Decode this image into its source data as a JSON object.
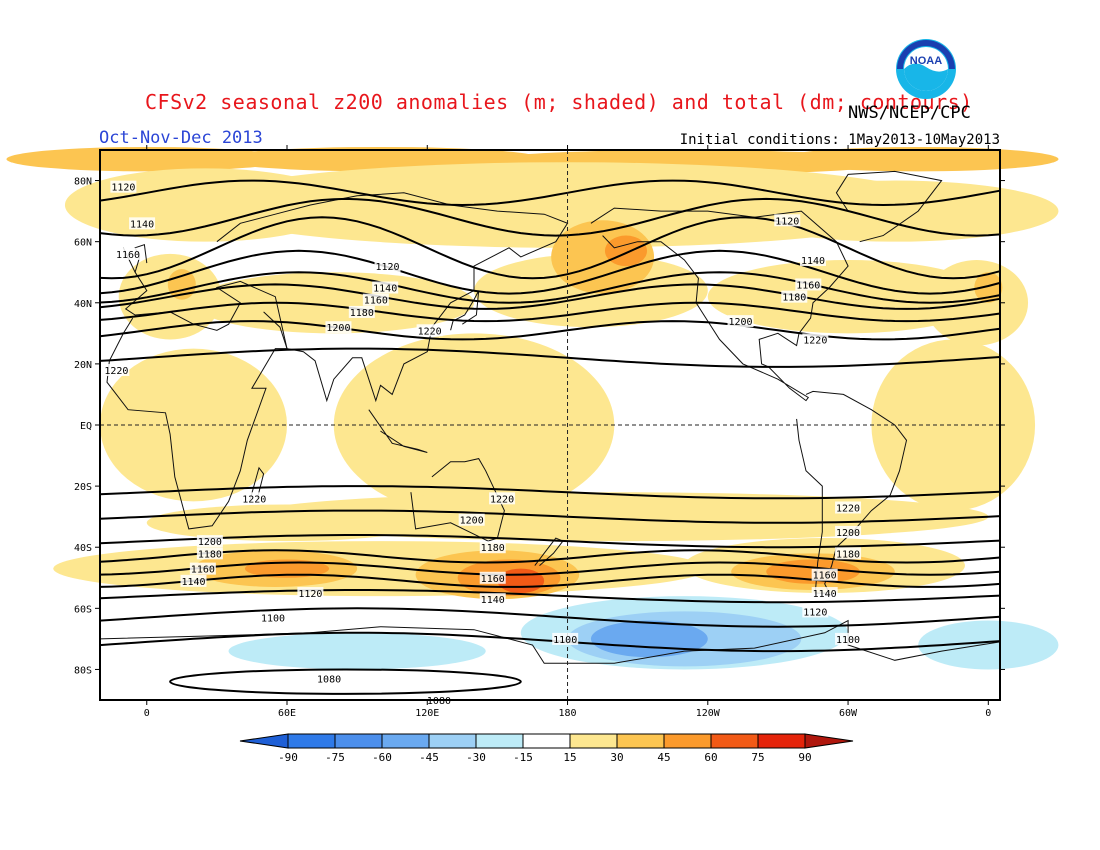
{
  "header": {
    "title": "CFSv2 seasonal z200 anomalies (m; shaded) and total (dm; contours)",
    "agency": "NWS/NCEP/CPC",
    "period": "Oct-Nov-Dec 2013",
    "initial_conditions": "Initial conditions: 1May2013-10May2013",
    "logo_text": "NOAA"
  },
  "axes": {
    "y_labels": [
      "80N",
      "60N",
      "40N",
      "20N",
      "EQ",
      "20S",
      "40S",
      "60S",
      "80S"
    ],
    "y_values": [
      80,
      60,
      40,
      20,
      0,
      -20,
      -40,
      -60,
      -80
    ],
    "x_labels": [
      "0",
      "60E",
      "120E",
      "180",
      "120W",
      "60W",
      "0"
    ],
    "x_values": [
      0,
      60,
      120,
      180,
      240,
      300,
      360
    ],
    "lon_range": [
      -20,
      365
    ],
    "lat_range": [
      -90,
      90
    ]
  },
  "colorbar": {
    "levels": [
      -90,
      -75,
      -60,
      -45,
      -30,
      -15,
      15,
      30,
      45,
      60,
      75,
      90
    ],
    "labels": [
      "-90",
      "-75",
      "-60",
      "-45",
      "-30",
      "-15",
      "15",
      "30",
      "45",
      "60",
      "75",
      "90"
    ],
    "colors": [
      "#1e5fd6",
      "#2f7ae8",
      "#4c8fec",
      "#6aa9f0",
      "#9dd0f5",
      "#bdebf7",
      "#ffffff",
      "#fde790",
      "#fcc551",
      "#fb9a2c",
      "#f25a16",
      "#e5240a",
      "#b0170d"
    ]
  },
  "contour_labels": [
    {
      "text": "1120",
      "lon": -10,
      "lat": 78
    },
    {
      "text": "1140",
      "lon": -2,
      "lat": 66
    },
    {
      "text": "1160",
      "lon": -8,
      "lat": 56
    },
    {
      "text": "1120",
      "lon": 103,
      "lat": 52
    },
    {
      "text": "1140",
      "lon": 102,
      "lat": 45
    },
    {
      "text": "1160",
      "lon": 98,
      "lat": 41
    },
    {
      "text": "1180",
      "lon": 92,
      "lat": 37
    },
    {
      "text": "1200",
      "lon": 82,
      "lat": 32
    },
    {
      "text": "1220",
      "lon": 121,
      "lat": 31
    },
    {
      "text": "1220",
      "lon": -13,
      "lat": 18
    },
    {
      "text": "1120",
      "lon": 274,
      "lat": 67
    },
    {
      "text": "1140",
      "lon": 285,
      "lat": 54
    },
    {
      "text": "1160",
      "lon": 283,
      "lat": 46
    },
    {
      "text": "1180",
      "lon": 277,
      "lat": 42
    },
    {
      "text": "1200",
      "lon": 254,
      "lat": 34
    },
    {
      "text": "1220",
      "lon": 286,
      "lat": 28
    },
    {
      "text": "1220",
      "lon": 46,
      "lat": -24
    },
    {
      "text": "1220",
      "lon": 152,
      "lat": -24
    },
    {
      "text": "1220",
      "lon": 300,
      "lat": -27
    },
    {
      "text": "1200",
      "lon": 139,
      "lat": -31
    },
    {
      "text": "1200",
      "lon": 300,
      "lat": -35
    },
    {
      "text": "1200",
      "lon": 27,
      "lat": -38
    },
    {
      "text": "1180",
      "lon": 27,
      "lat": -42
    },
    {
      "text": "1180",
      "lon": 300,
      "lat": -42
    },
    {
      "text": "1180",
      "lon": 148,
      "lat": -40
    },
    {
      "text": "1160",
      "lon": 24,
      "lat": -47
    },
    {
      "text": "1160",
      "lon": 148,
      "lat": -50
    },
    {
      "text": "1160",
      "lon": 290,
      "lat": -49
    },
    {
      "text": "1140",
      "lon": 20,
      "lat": -51
    },
    {
      "text": "1140",
      "lon": 148,
      "lat": -57
    },
    {
      "text": "1140",
      "lon": 290,
      "lat": -55
    },
    {
      "text": "1120",
      "lon": 70,
      "lat": -55
    },
    {
      "text": "1120",
      "lon": 286,
      "lat": -61
    },
    {
      "text": "1100",
      "lon": 54,
      "lat": -63
    },
    {
      "text": "1100",
      "lon": 179,
      "lat": -70
    },
    {
      "text": "1100",
      "lon": 300,
      "lat": -70
    },
    {
      "text": "1080",
      "lon": 78,
      "lat": -83
    },
    {
      "text": "1080",
      "lon": 125,
      "lat": -90
    }
  ]
}
